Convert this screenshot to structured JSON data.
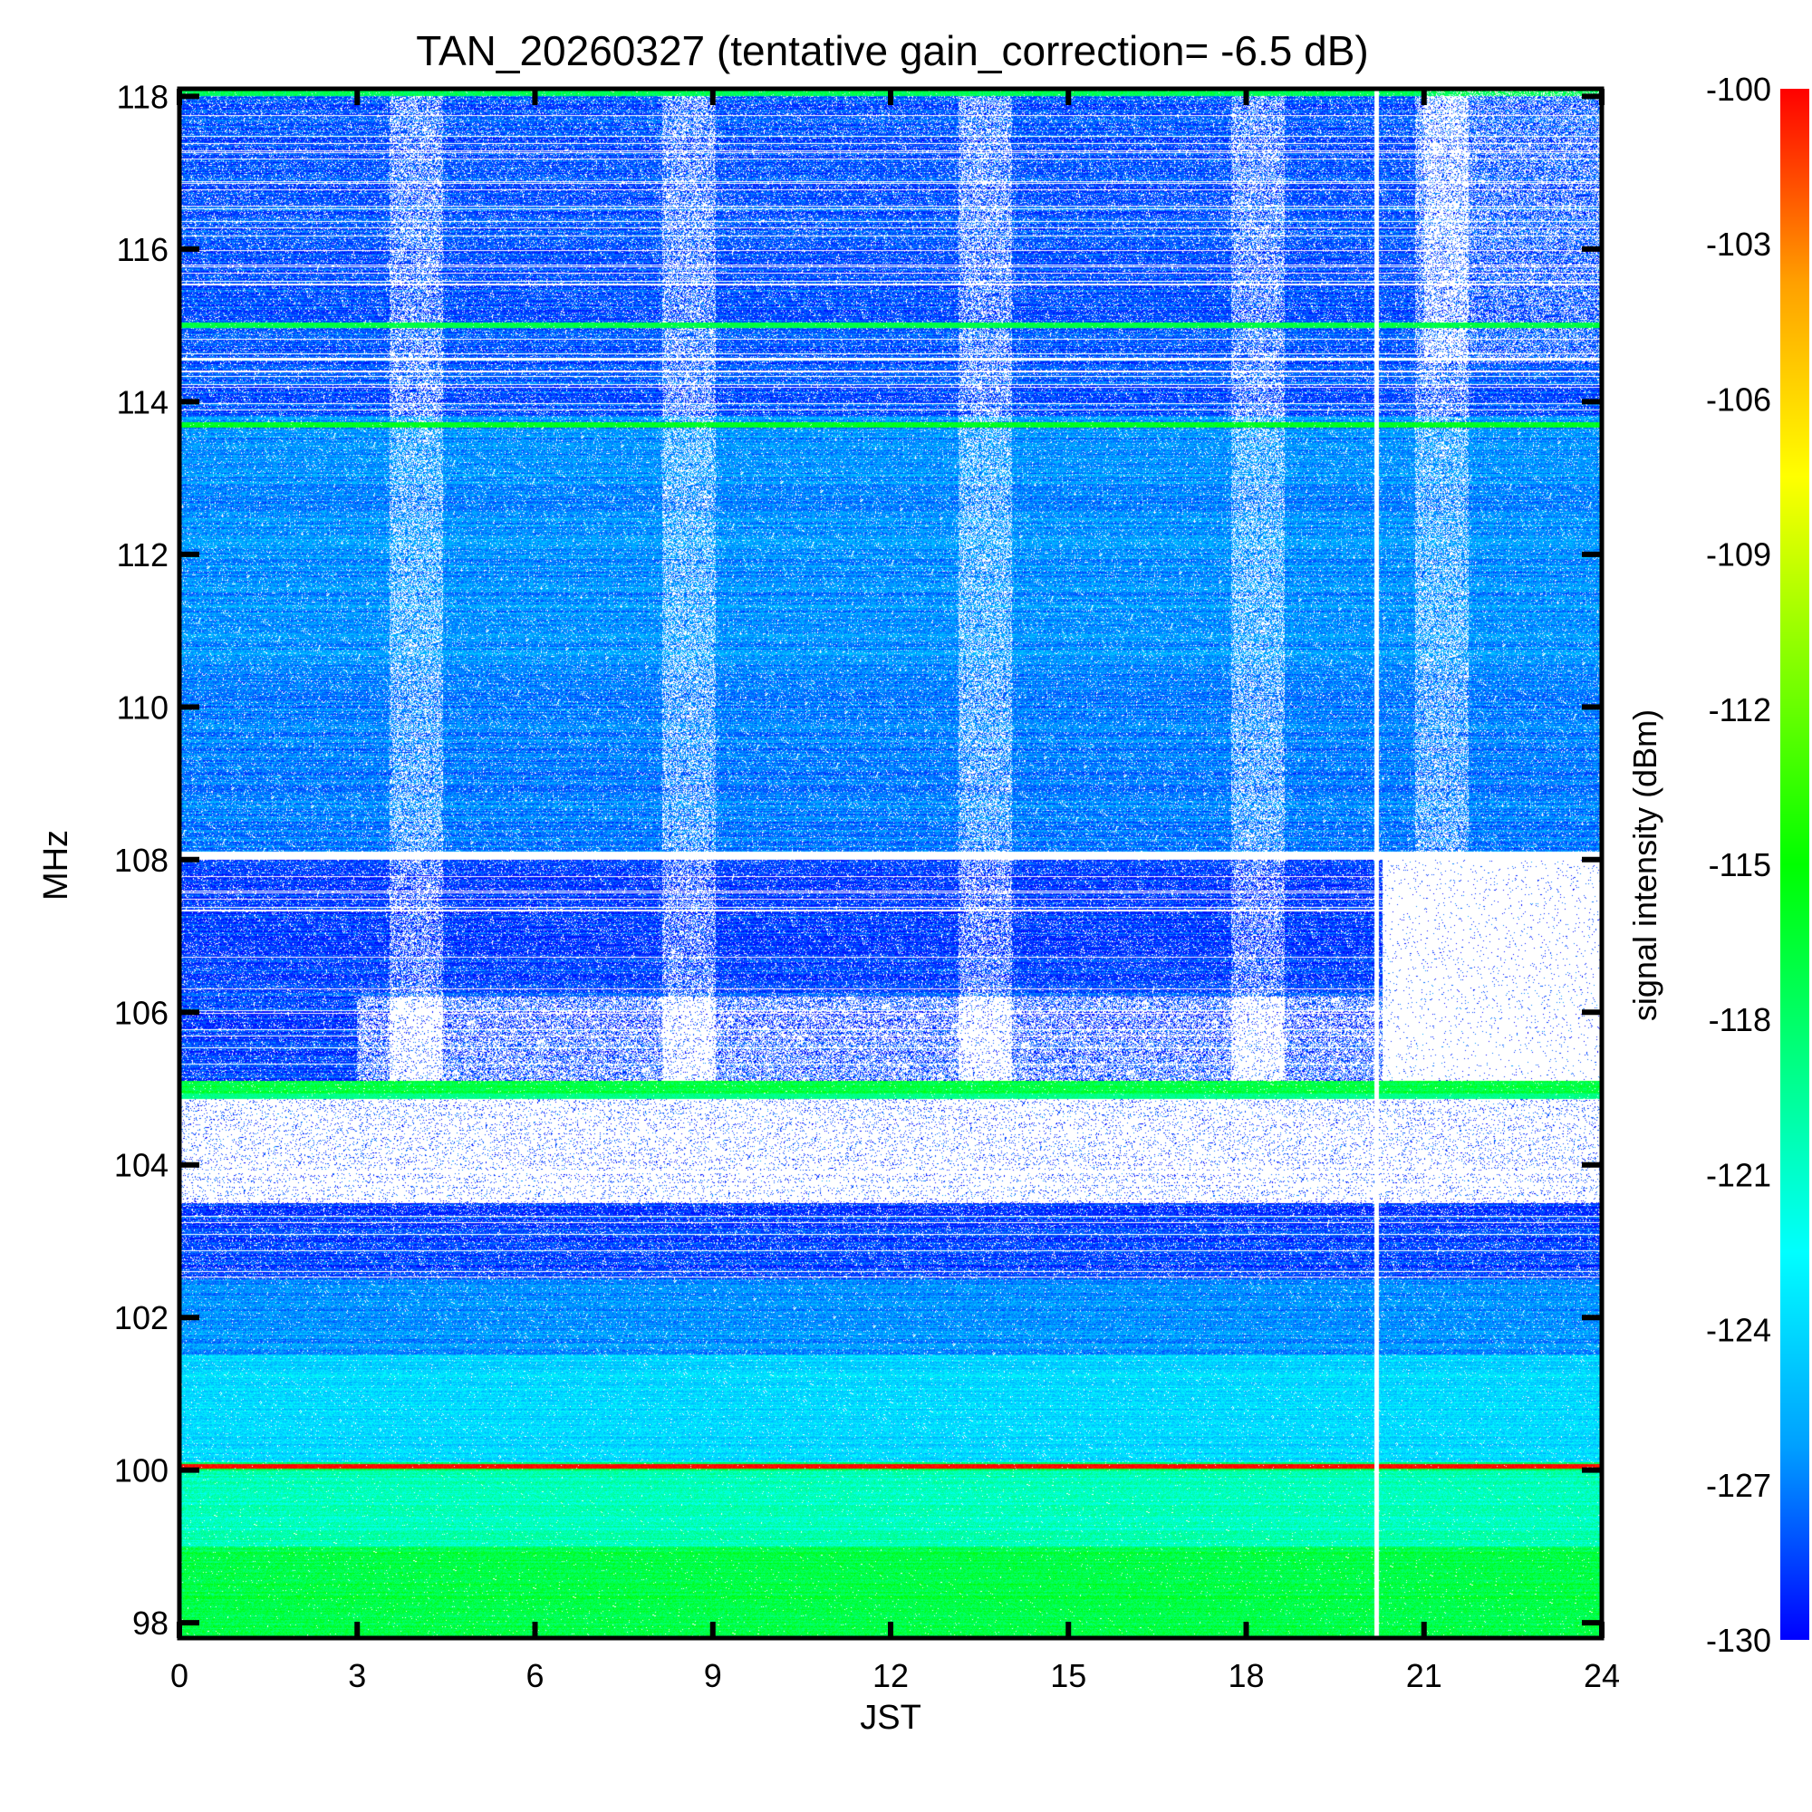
{
  "chart_data": {
    "type": "heatmap",
    "title": "TAN_20260327 (tentative gain_correction= -6.5 dB)",
    "xlabel": "JST",
    "ylabel": "MHz",
    "xlim": [
      0,
      24
    ],
    "ylim": [
      97.8,
      118.1
    ],
    "x_ticks": [
      0,
      3,
      6,
      9,
      12,
      15,
      18,
      21,
      24
    ],
    "y_ticks": [
      98,
      100,
      102,
      104,
      106,
      108,
      110,
      112,
      114,
      116,
      118
    ],
    "colorbar": {
      "label": "signal intensity (dBm)",
      "range": [
        -130,
        -100
      ],
      "ticks": [
        -100,
        -103,
        -106,
        -109,
        -112,
        -115,
        -118,
        -121,
        -124,
        -127,
        -130
      ],
      "colors": [
        "#0000ff",
        "#00a0ff",
        "#00ffff",
        "#00ff80",
        "#00ff00",
        "#80ff00",
        "#ffff00",
        "#ffa000",
        "#ff0000"
      ]
    },
    "bands": [
      {
        "y0": 116,
        "y1": 118,
        "level": -128,
        "noise": 0.5
      },
      {
        "y0": 115.0,
        "y1": 116,
        "level": -128,
        "noise": 0.4
      },
      {
        "y0": 113.8,
        "y1": 115.0,
        "level": -128,
        "noise": 0.4
      },
      {
        "y0": 110.5,
        "y1": 113.8,
        "level": -126.5,
        "noise": 0.25
      },
      {
        "y0": 108.1,
        "y1": 110.5,
        "level": -127,
        "noise": 0.3
      },
      {
        "y0": 105.1,
        "y1": 108.0,
        "level": -128.5,
        "noise": 0.4
      },
      {
        "y0": 102.5,
        "y1": 104.9,
        "level": -128.5,
        "noise": 0.4
      },
      {
        "y0": 101.5,
        "y1": 102.5,
        "level": -126.5,
        "noise": 0.15
      },
      {
        "y0": 100.1,
        "y1": 101.5,
        "level": -124,
        "noise": 0.1
      },
      {
        "y0": 99.0,
        "y1": 100.0,
        "level": -120.5,
        "noise": 0.05
      },
      {
        "y0": 97.8,
        "y1": 99.0,
        "level": -117,
        "noise": 0.05
      }
    ],
    "strong_lines": [
      {
        "freq": 115.0,
        "level": -117
      },
      {
        "freq": 113.7,
        "level": -116
      },
      {
        "freq": 104.9,
        "level": -119
      },
      {
        "freq": 100.05,
        "level": -100
      }
    ],
    "gap_hour": 20.2
  }
}
